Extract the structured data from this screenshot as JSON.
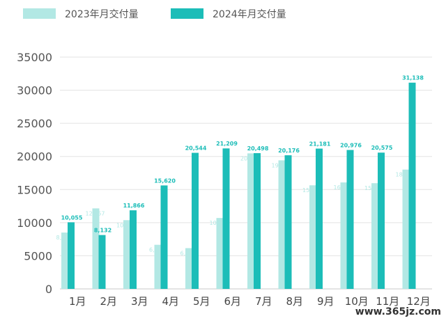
{
  "chart_data": {
    "type": "bar",
    "categories": [
      "1月",
      "2月",
      "3月",
      "4月",
      "5月",
      "6月",
      "7月",
      "8月",
      "9月",
      "10月",
      "11月",
      "12月"
    ],
    "series": [
      {
        "name": "2023年月交付量",
        "color": "#b2e8e4",
        "values": [
          8506,
          12157,
          10378,
          6658,
          6155,
          10707,
          20462,
          19411,
          15641,
          16074,
          15959,
          18012
        ],
        "labels": [
          "8,506",
          "12,157",
          "10,378",
          "6,658",
          "6,155",
          "10,707",
          "20,462",
          "19,411",
          "15,641",
          "16,074",
          "15,959",
          "18,012"
        ]
      },
      {
        "name": "2024年月交付量",
        "color": "#1cbdb8",
        "values": [
          10055,
          8132,
          11866,
          15620,
          20544,
          21209,
          20498,
          20176,
          21181,
          20976,
          20575,
          31138
        ],
        "labels": [
          "10,055",
          "8,132",
          "11,866",
          "15,620",
          "20,544",
          "21,209",
          "20,498",
          "20,176",
          "21,181",
          "20,976",
          "20,575",
          "31,138"
        ]
      }
    ],
    "yticks": [
      "0",
      "5000",
      "10000",
      "15000",
      "20000",
      "25000",
      "30000",
      "35000"
    ],
    "ylim": [
      0,
      35000
    ],
    "grid": true,
    "legend": "top-left",
    "watermark": "www.365jz.com"
  }
}
